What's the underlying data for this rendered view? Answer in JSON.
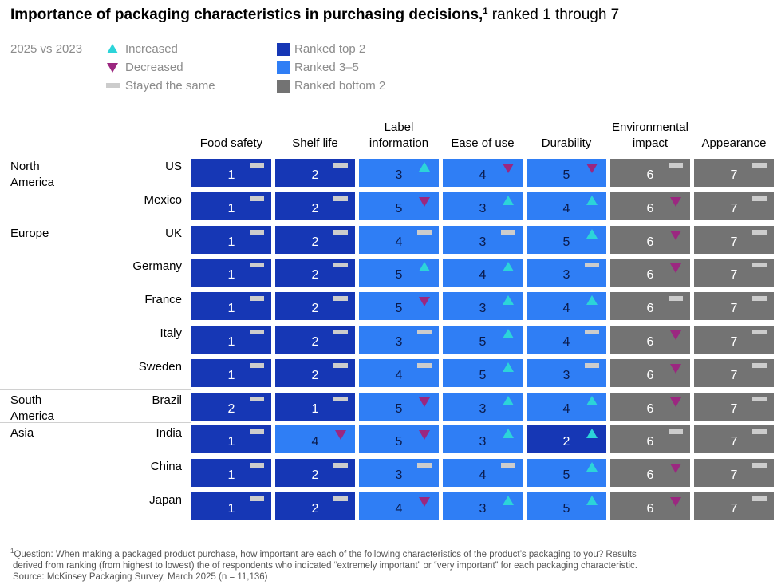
{
  "title": {
    "bold": "Importance of packaging characteristics in purchasing decisions,",
    "sup": "1",
    "rest": " ranked 1 through 7"
  },
  "legend": {
    "comparison": "2025 vs 2023",
    "change": [
      {
        "key": "up",
        "label": "Increased"
      },
      {
        "key": "down",
        "label": "Decreased"
      },
      {
        "key": "same",
        "label": "Stayed the same"
      }
    ],
    "rank_groups": [
      {
        "label": "Ranked top 2",
        "color": "#1637b5"
      },
      {
        "label": "Ranked 3–5",
        "color": "#2f7ef5"
      },
      {
        "label": "Ranked bottom 2",
        "color": "#737373"
      }
    ],
    "change_colors": {
      "up": "#2cd4d9",
      "down": "#9b2780",
      "same": "#cccccc"
    }
  },
  "chart_data": {
    "type": "table",
    "columns": [
      "Food safety",
      "Shelf life",
      "Label information",
      "Ease of use",
      "Durability",
      "Environmental impact",
      "Appearance"
    ],
    "regions": [
      {
        "name": "North America",
        "countries": [
          "US",
          "Mexico"
        ]
      },
      {
        "name": "Europe",
        "countries": [
          "UK",
          "Germany",
          "France",
          "Italy",
          "Sweden"
        ]
      },
      {
        "name": "South America",
        "countries": [
          "Brazil"
        ]
      },
      {
        "name": "Asia",
        "countries": [
          "India",
          "China",
          "Japan"
        ]
      }
    ],
    "rows": [
      {
        "country": "US",
        "ranks": [
          1,
          2,
          3,
          4,
          5,
          6,
          7
        ],
        "changes": [
          "same",
          "same",
          "up",
          "down",
          "down",
          "same",
          "same"
        ]
      },
      {
        "country": "Mexico",
        "ranks": [
          1,
          2,
          5,
          3,
          4,
          6,
          7
        ],
        "changes": [
          "same",
          "same",
          "down",
          "up",
          "up",
          "down",
          "same"
        ]
      },
      {
        "country": "UK",
        "ranks": [
          1,
          2,
          4,
          3,
          5,
          6,
          7
        ],
        "changes": [
          "same",
          "same",
          "same",
          "same",
          "up",
          "down",
          "same"
        ]
      },
      {
        "country": "Germany",
        "ranks": [
          1,
          2,
          5,
          4,
          3,
          6,
          7
        ],
        "changes": [
          "same",
          "same",
          "up",
          "up",
          "same",
          "down",
          "same"
        ]
      },
      {
        "country": "France",
        "ranks": [
          1,
          2,
          5,
          3,
          4,
          6,
          7
        ],
        "changes": [
          "same",
          "same",
          "down",
          "up",
          "up",
          "same",
          "same"
        ]
      },
      {
        "country": "Italy",
        "ranks": [
          1,
          2,
          3,
          5,
          4,
          6,
          7
        ],
        "changes": [
          "same",
          "same",
          "same",
          "up",
          "same",
          "down",
          "same"
        ]
      },
      {
        "country": "Sweden",
        "ranks": [
          1,
          2,
          4,
          5,
          3,
          6,
          7
        ],
        "changes": [
          "same",
          "same",
          "same",
          "up",
          "same",
          "down",
          "same"
        ]
      },
      {
        "country": "Brazil",
        "ranks": [
          2,
          1,
          5,
          3,
          4,
          6,
          7
        ],
        "changes": [
          "same",
          "same",
          "down",
          "up",
          "up",
          "down",
          "same"
        ]
      },
      {
        "country": "India",
        "ranks": [
          1,
          4,
          5,
          3,
          2,
          6,
          7
        ],
        "changes": [
          "same",
          "down",
          "down",
          "up",
          "up",
          "same",
          "same"
        ]
      },
      {
        "country": "China",
        "ranks": [
          1,
          2,
          3,
          4,
          5,
          6,
          7
        ],
        "changes": [
          "same",
          "same",
          "same",
          "same",
          "up",
          "down",
          "same"
        ]
      },
      {
        "country": "Japan",
        "ranks": [
          1,
          2,
          4,
          3,
          5,
          6,
          7
        ],
        "changes": [
          "same",
          "same",
          "down",
          "up",
          "up",
          "down",
          "same"
        ]
      }
    ]
  },
  "footnote": {
    "sup": "1",
    "line1": "Question: When making a packaged product purchase, how important are each of the following characteristics of the product’s packaging to you? Results",
    "line2": "derived from ranking (from highest to lowest) the of respondents who indicated “extremely important” or “very important” for each packaging characteristic.",
    "source": "Source: McKinsey Packaging Survey, March 2025 (n = 11,136)"
  }
}
